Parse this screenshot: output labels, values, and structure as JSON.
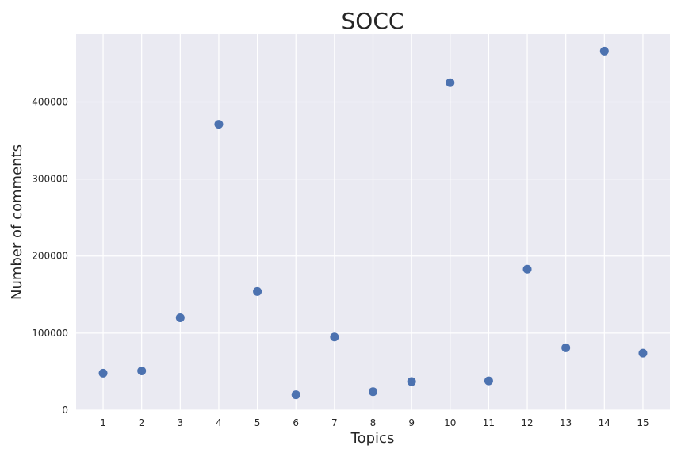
{
  "chart_data": {
    "type": "scatter",
    "title": "SOCC",
    "xlabel": "Topics",
    "ylabel": "Number of comments",
    "x": [
      1,
      2,
      3,
      4,
      5,
      6,
      7,
      8,
      9,
      10,
      11,
      12,
      13,
      14,
      15
    ],
    "y": [
      48000,
      51000,
      120000,
      371000,
      154000,
      20000,
      95000,
      24000,
      37000,
      425000,
      38000,
      183000,
      81000,
      466000,
      74000
    ],
    "xticks": [
      "1",
      "2",
      "3",
      "4",
      "5",
      "6",
      "7",
      "8",
      "9",
      "10",
      "11",
      "12",
      "13",
      "14",
      "15"
    ],
    "yticks": [
      0,
      100000,
      200000,
      300000,
      400000
    ],
    "ytick_labels": [
      "0",
      "100000",
      "200000",
      "300000",
      "400000"
    ],
    "xlim": [
      0.3,
      15.7
    ],
    "ylim": [
      0,
      488000
    ],
    "grid": true,
    "colors": {
      "point": "#4c72b0",
      "background": "#eaeaf2",
      "grid": "#ffffff"
    }
  }
}
